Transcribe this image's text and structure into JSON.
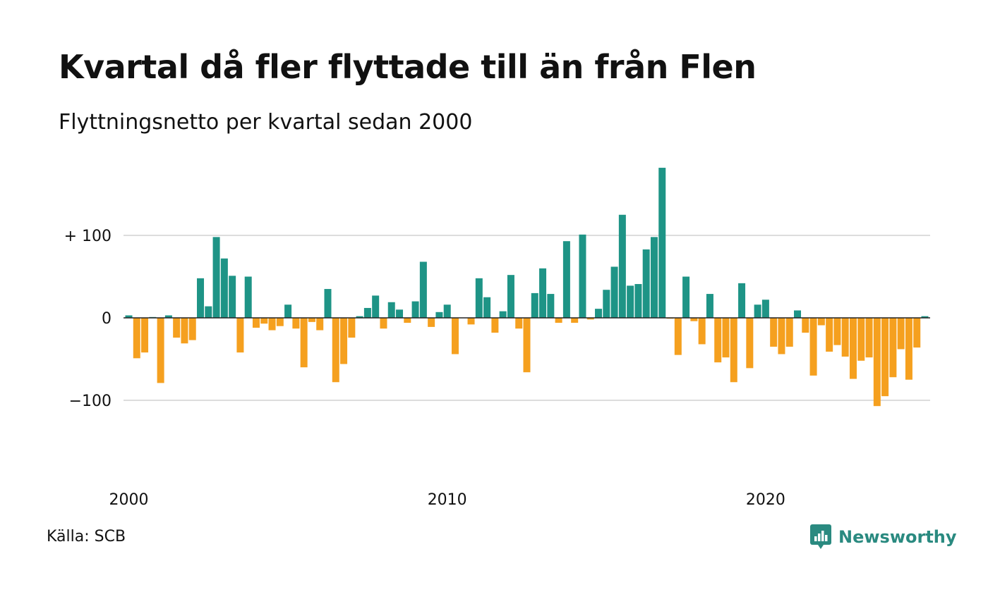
{
  "title": "Kvartal då fler flyttade till än från Flen",
  "subtitle": "Flyttningsnetto per kvartal sedan 2000",
  "source": "Källa: SCB",
  "brand": {
    "name": "Newsworthy",
    "icon": "newsworthy-logo-icon",
    "color": "#2a8a80"
  },
  "colors": {
    "positive": "#1e9486",
    "negative": "#f5a01f",
    "grid": "#dddddd",
    "zero": "#222222"
  },
  "chart_data": {
    "type": "bar",
    "title": "Kvartal då fler flyttade till än från Flen",
    "subtitle": "Flyttningsnetto per kvartal sedan 2000",
    "xlabel": "",
    "ylabel": "",
    "ylim": [
      -150,
      185
    ],
    "y_ticks": [
      {
        "value": 100,
        "label": "+ 100"
      },
      {
        "value": 0,
        "label": "0"
      },
      {
        "value": -100,
        "label": "−100"
      }
    ],
    "x_ticks": [
      {
        "index": 0,
        "label": "2000"
      },
      {
        "index": 40,
        "label": "2010"
      },
      {
        "index": 80,
        "label": "2020"
      }
    ],
    "grid": true,
    "legend": "none",
    "start_quarter": "2000 K1",
    "values": [
      3,
      -49,
      -42,
      1,
      -79,
      3,
      -24,
      -31,
      -27,
      48,
      14,
      98,
      72,
      51,
      -42,
      50,
      -12,
      -7,
      -15,
      -10,
      16,
      -13,
      -60,
      -5,
      -15,
      35,
      -78,
      -56,
      -24,
      2,
      12,
      27,
      -13,
      19,
      10,
      -6,
      20,
      68,
      -11,
      7,
      16,
      -44,
      0,
      -8,
      48,
      25,
      -18,
      8,
      52,
      -13,
      -66,
      30,
      60,
      29,
      -6,
      93,
      -6,
      101,
      -2,
      11,
      34,
      62,
      125,
      39,
      41,
      83,
      98,
      182,
      -1,
      -45,
      50,
      -4,
      -32,
      29,
      -54,
      -48,
      -78,
      42,
      -61,
      16,
      22,
      -35,
      -44,
      -35,
      9,
      -18,
      -70,
      -9,
      -41,
      -33,
      -47,
      -74,
      -52,
      -48,
      -107,
      -95,
      -72,
      -38,
      -75,
      -36,
      2
    ]
  }
}
